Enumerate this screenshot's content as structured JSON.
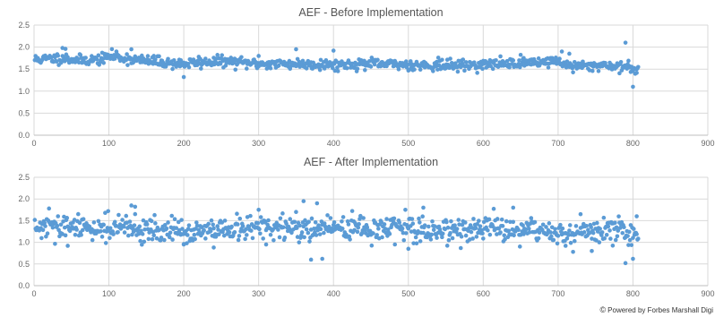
{
  "chart_data": [
    {
      "type": "scatter",
      "title": "AEF - Before Implementation",
      "xlim": [
        0,
        900
      ],
      "ylim": [
        0.0,
        2.5
      ],
      "x_ticks": [
        "0",
        "100",
        "200",
        "300",
        "400",
        "500",
        "600",
        "700",
        "800",
        "900"
      ],
      "y_ticks": [
        "0.0",
        "0.5",
        "1.0",
        "1.5",
        "2.0",
        "2.5"
      ],
      "grid": true,
      "color": "#5b9bd5",
      "n_points": 807,
      "baseline_profile": [
        [
          0,
          1.72
        ],
        [
          40,
          1.75
        ],
        [
          60,
          1.7
        ],
        [
          90,
          1.72
        ],
        [
          100,
          1.8
        ],
        [
          150,
          1.68
        ],
        [
          200,
          1.62
        ],
        [
          250,
          1.68
        ],
        [
          300,
          1.62
        ],
        [
          350,
          1.62
        ],
        [
          400,
          1.6
        ],
        [
          450,
          1.62
        ],
        [
          500,
          1.6
        ],
        [
          550,
          1.58
        ],
        [
          600,
          1.6
        ],
        [
          650,
          1.65
        ],
        [
          700,
          1.68
        ],
        [
          720,
          1.55
        ],
        [
          760,
          1.6
        ],
        [
          800,
          1.52
        ]
      ],
      "notable_points": [
        [
          38,
          1.98
        ],
        [
          42,
          1.96
        ],
        [
          110,
          1.9
        ],
        [
          130,
          1.95
        ],
        [
          160,
          1.8
        ],
        [
          200,
          1.32
        ],
        [
          220,
          1.78
        ],
        [
          300,
          1.8
        ],
        [
          350,
          1.95
        ],
        [
          400,
          1.92
        ],
        [
          540,
          1.76
        ],
        [
          705,
          1.9
        ],
        [
          715,
          1.85
        ],
        [
          790,
          2.1
        ],
        [
          800,
          1.1
        ],
        [
          805,
          1.5
        ]
      ]
    },
    {
      "type": "scatter",
      "title": "AEF - After Implementation",
      "xlim": [
        0,
        900
      ],
      "ylim": [
        0.0,
        2.5
      ],
      "x_ticks": [
        "0",
        "100",
        "200",
        "300",
        "400",
        "500",
        "600",
        "700",
        "800",
        "900"
      ],
      "y_ticks": [
        "0.0",
        "0.5",
        "1.0",
        "1.5",
        "2.0",
        "2.5"
      ],
      "grid": true,
      "color": "#5b9bd5",
      "n_points": 807,
      "baseline_profile": [
        [
          0,
          1.32
        ],
        [
          100,
          1.35
        ],
        [
          150,
          1.3
        ],
        [
          200,
          1.22
        ],
        [
          250,
          1.25
        ],
        [
          300,
          1.35
        ],
        [
          350,
          1.3
        ],
        [
          400,
          1.35
        ],
        [
          450,
          1.3
        ],
        [
          500,
          1.3
        ],
        [
          550,
          1.28
        ],
        [
          600,
          1.3
        ],
        [
          650,
          1.28
        ],
        [
          700,
          1.22
        ],
        [
          750,
          1.25
        ],
        [
          800,
          1.25
        ]
      ],
      "notable_points": [
        [
          20,
          1.78
        ],
        [
          45,
          0.92
        ],
        [
          130,
          1.85
        ],
        [
          135,
          1.82
        ],
        [
          200,
          0.95
        ],
        [
          240,
          0.88
        ],
        [
          300,
          1.75
        ],
        [
          310,
          0.95
        ],
        [
          350,
          1.7
        ],
        [
          360,
          1.95
        ],
        [
          370,
          0.6
        ],
        [
          378,
          1.9
        ],
        [
          385,
          0.62
        ],
        [
          500,
          0.85
        ],
        [
          520,
          1.8
        ],
        [
          640,
          1.8
        ],
        [
          710,
          0.92
        ],
        [
          720,
          0.78
        ],
        [
          730,
          1.65
        ],
        [
          745,
          0.8
        ],
        [
          790,
          0.52
        ],
        [
          800,
          0.62
        ],
        [
          805,
          1.6
        ]
      ]
    }
  ],
  "footer": {
    "credit": "Powered by Forbes Marshall Digi",
    "credit_icon": "copyright-icon"
  }
}
